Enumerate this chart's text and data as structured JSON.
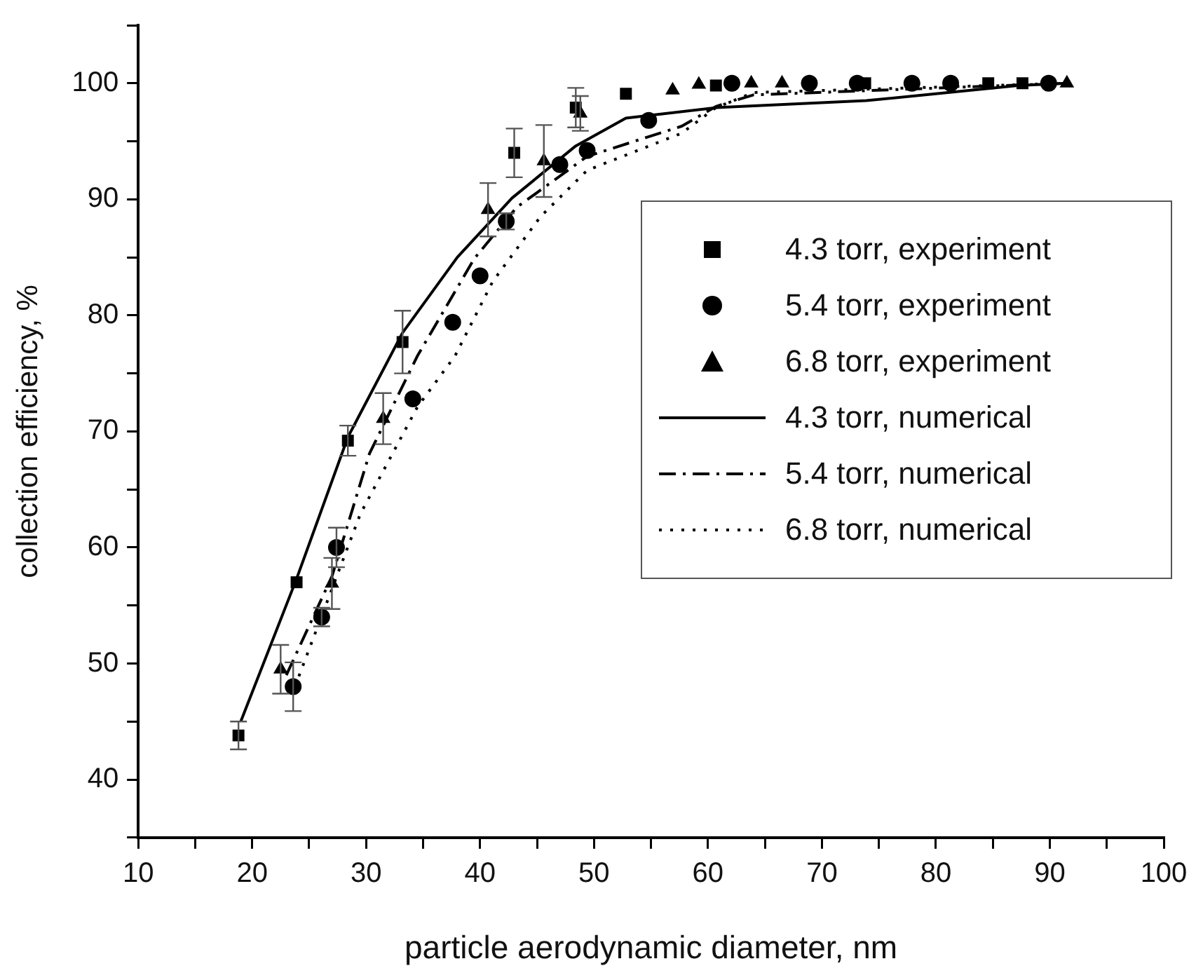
{
  "chart_data": {
    "type": "scatter",
    "xlabel": "particle aerodynamic diameter, nm",
    "ylabel": "collection efficiency, %",
    "xlim": [
      10,
      100
    ],
    "xticks": [
      10,
      {
        "value": 15,
        "label": null
      },
      20,
      {
        "value": 25,
        "label": null
      },
      30,
      {
        "value": 35,
        "label": null
      },
      40,
      {
        "value": 45,
        "label": null
      },
      50,
      {
        "value": 55,
        "label": null
      },
      60,
      {
        "value": 65,
        "label": null
      },
      70,
      {
        "value": 75,
        "label": null
      },
      80,
      {
        "value": 85,
        "label": null
      },
      90,
      {
        "value": 95,
        "label": null
      },
      100
    ],
    "ylim": [
      35,
      105
    ],
    "yticks": [
      {
        "value": 35,
        "label": null
      },
      40,
      {
        "value": 45,
        "label": null
      },
      50,
      {
        "value": 55,
        "label": null
      },
      60,
      {
        "value": 65,
        "label": null
      },
      70,
      {
        "value": 75,
        "label": null
      },
      80,
      {
        "value": 85,
        "label": null
      },
      90,
      {
        "value": 95,
        "label": null
      },
      100,
      {
        "value": 105,
        "label": null
      }
    ],
    "grid": false,
    "legend": "right",
    "series": [
      {
        "name": "4.3 torr, experiment",
        "type": "scatter",
        "marker": "square",
        "color": "#000000",
        "x": [
          18.8,
          23.9,
          28.4,
          33.2,
          43.0,
          48.4,
          52.8,
          60.7,
          73.8,
          84.6,
          87.6
        ],
        "values": [
          43.8,
          57.0,
          69.2,
          77.7,
          94.0,
          97.9,
          99.1,
          99.8,
          100,
          100,
          100
        ],
        "errors": [
          1.2,
          null,
          1.3,
          2.7,
          2.1,
          1.7,
          null,
          null,
          null,
          null,
          null
        ]
      },
      {
        "name": "5.4 torr, experiment",
        "type": "scatter",
        "marker": "circle",
        "color": "#000000",
        "x": [
          23.6,
          26.1,
          27.4,
          34.1,
          37.6,
          40.0,
          42.3,
          47.0,
          49.4,
          54.8,
          62.1,
          68.9,
          73.1,
          77.9,
          81.3,
          89.9
        ],
        "values": [
          48.0,
          54.0,
          60.0,
          72.8,
          79.4,
          83.4,
          88.1,
          93.0,
          94.2,
          96.8,
          100,
          100,
          100,
          100,
          100,
          100
        ],
        "errors": [
          2.1,
          0.8,
          1.7,
          null,
          null,
          null,
          0.7,
          null,
          null,
          null,
          null,
          null,
          null,
          null,
          null,
          null
        ]
      },
      {
        "name": "6.8 torr, experiment",
        "type": "scatter",
        "marker": "triangle",
        "color": "#000000",
        "x": [
          22.5,
          27.0,
          31.5,
          40.7,
          45.6,
          48.8,
          56.9,
          59.2,
          63.8,
          66.5,
          91.5
        ],
        "values": [
          49.5,
          56.9,
          71.1,
          89.1,
          93.3,
          97.4,
          99.4,
          99.9,
          100,
          100,
          100
        ],
        "errors": [
          2.1,
          2.2,
          2.2,
          2.3,
          3.1,
          1.5,
          null,
          null,
          null,
          null,
          null
        ]
      },
      {
        "name": "4.3 torr, numerical",
        "type": "line",
        "marker": "none",
        "line_style": "solid",
        "color": "#000000",
        "x": [
          19.0,
          23.9,
          28.4,
          33.2,
          38.0,
          42.8,
          48.4,
          52.8,
          60.7,
          73.9,
          87.2,
          91.5
        ],
        "values": [
          45.0,
          57.3,
          69.5,
          78.5,
          85.0,
          90.1,
          94.6,
          97.0,
          97.9,
          98.5,
          99.8,
          100
        ]
      },
      {
        "name": "5.4 torr, numerical",
        "type": "line",
        "marker": "none",
        "line_style": "dashdot",
        "color": "#000000",
        "x": [
          23.0,
          27.0,
          30.3,
          34.5,
          39.5,
          43.2,
          49.4,
          57.7,
          60.7,
          64.0,
          91.5
        ],
        "values": [
          49.0,
          57.5,
          68.1,
          76.5,
          84.9,
          89.3,
          93.7,
          96.3,
          98.0,
          99.0,
          100
        ]
      },
      {
        "name": "6.8 torr, numerical",
        "type": "line",
        "marker": "none",
        "line_style": "dotted",
        "color": "#000000",
        "x": [
          24.1,
          29.5,
          34.5,
          37.8,
          41.1,
          45.3,
          49.4,
          57.7,
          60.7,
          64.0,
          91.5
        ],
        "values": [
          48.9,
          62.9,
          72.1,
          76.5,
          82.9,
          88.5,
          92.5,
          95.7,
          97.9,
          99.2,
          100
        ]
      }
    ]
  }
}
